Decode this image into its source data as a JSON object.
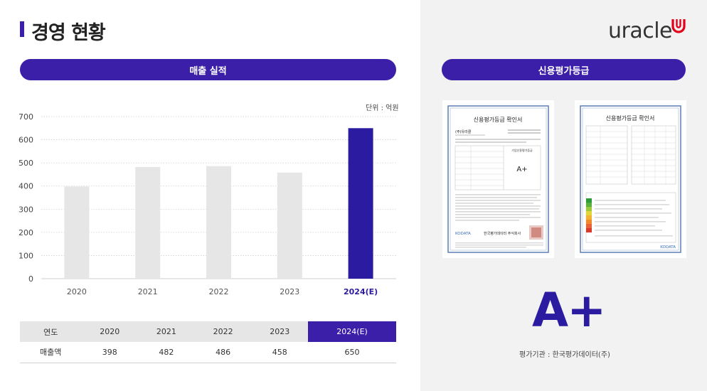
{
  "header": {
    "title": "경영 현황",
    "logo_text": "uracle"
  },
  "sales_section": {
    "pill_label": "매출 실적",
    "unit": "단위 : 억원",
    "table": {
      "row_header": "연도",
      "row_label": "매출액",
      "years": [
        "2020",
        "2021",
        "2022",
        "2023",
        "2024(E)"
      ],
      "values": [
        "398",
        "482",
        "486",
        "458",
        "650"
      ]
    }
  },
  "chart_data": {
    "type": "bar",
    "categories": [
      "2020",
      "2021",
      "2022",
      "2023",
      "2024(E)"
    ],
    "values": [
      398,
      482,
      486,
      458,
      650
    ],
    "ylim": [
      0,
      700
    ],
    "yticks": [
      0,
      100,
      200,
      300,
      400,
      500,
      600,
      700
    ],
    "grid": true,
    "colors": {
      "default": "#e6e6e6",
      "highlight": "#2a1ba0"
    },
    "highlight_index": 4
  },
  "credit_section": {
    "pill_label": "신용평가등급",
    "grade": "A+",
    "agency": "평가기관 : 한국평가데이터(주)",
    "cert_left": {
      "title": "신용평가등급 확인서",
      "company": "(주)유라클",
      "grade_box_label": "기업신용평가등급",
      "grade": "A+",
      "issuer": "한국평가데이터 주식회사",
      "brand": "KODATA"
    },
    "cert_right": {
      "title": "신용평가등급 확인서",
      "brand": "KODATA"
    }
  }
}
